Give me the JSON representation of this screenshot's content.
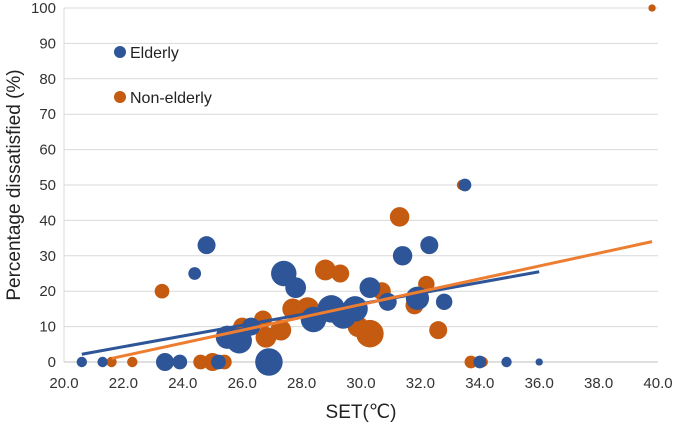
{
  "chart_data": {
    "type": "scatter",
    "title": "",
    "xlabel": "SET(℃)",
    "ylabel": "Percentage dissatisfied (%)",
    "xlim": [
      20,
      40
    ],
    "ylim": [
      0,
      100
    ],
    "x_ticks": [
      "20.0",
      "22.0",
      "24.0",
      "26.0",
      "28.0",
      "30.0",
      "32.0",
      "34.0",
      "36.0",
      "38.0",
      "40.0"
    ],
    "y_ticks": [
      "0",
      "10",
      "20",
      "30",
      "40",
      "50",
      "60",
      "70",
      "80",
      "90",
      "100"
    ],
    "grid": true,
    "legend_position": "top-left",
    "marker_size_encoding": "bubble area",
    "series": [
      {
        "name": "Elderly",
        "color": "#2e5597",
        "points": [
          {
            "x": 20.6,
            "y": 0,
            "s": 1
          },
          {
            "x": 21.3,
            "y": 0,
            "s": 1
          },
          {
            "x": 23.4,
            "y": 0,
            "s": 3
          },
          {
            "x": 23.9,
            "y": 0,
            "s": 2
          },
          {
            "x": 24.4,
            "y": 25,
            "s": 1.5
          },
          {
            "x": 24.8,
            "y": 33,
            "s": 3
          },
          {
            "x": 25.2,
            "y": 0,
            "s": 2
          },
          {
            "x": 25.5,
            "y": 7,
            "s": 5
          },
          {
            "x": 25.9,
            "y": 6,
            "s": 6
          },
          {
            "x": 26.3,
            "y": 10,
            "s": 3
          },
          {
            "x": 26.9,
            "y": 0,
            "s": 7
          },
          {
            "x": 27.4,
            "y": 25,
            "s": 6
          },
          {
            "x": 27.8,
            "y": 21,
            "s": 4
          },
          {
            "x": 28.4,
            "y": 12,
            "s": 6
          },
          {
            "x": 29.0,
            "y": 15,
            "s": 7
          },
          {
            "x": 29.4,
            "y": 13,
            "s": 6
          },
          {
            "x": 29.8,
            "y": 15,
            "s": 6
          },
          {
            "x": 30.3,
            "y": 21,
            "s": 4
          },
          {
            "x": 30.9,
            "y": 17,
            "s": 3
          },
          {
            "x": 31.4,
            "y": 30,
            "s": 3.5
          },
          {
            "x": 31.9,
            "y": 18,
            "s": 5
          },
          {
            "x": 32.3,
            "y": 33,
            "s": 3
          },
          {
            "x": 32.8,
            "y": 17,
            "s": 2.5
          },
          {
            "x": 33.5,
            "y": 50,
            "s": 1.5
          },
          {
            "x": 34.0,
            "y": 0,
            "s": 1.5
          },
          {
            "x": 34.9,
            "y": 0,
            "s": 1
          },
          {
            "x": 36.0,
            "y": 0,
            "s": 0.5
          }
        ]
      },
      {
        "name": "Non-elderly",
        "color": "#c55a11",
        "points": [
          {
            "x": 21.6,
            "y": 0,
            "s": 1
          },
          {
            "x": 22.3,
            "y": 0,
            "s": 1
          },
          {
            "x": 23.3,
            "y": 20,
            "s": 2
          },
          {
            "x": 24.6,
            "y": 0,
            "s": 2
          },
          {
            "x": 25.0,
            "y": 0,
            "s": 3
          },
          {
            "x": 25.4,
            "y": 0,
            "s": 2
          },
          {
            "x": 26.0,
            "y": 10,
            "s": 3
          },
          {
            "x": 26.7,
            "y": 12,
            "s": 3
          },
          {
            "x": 26.8,
            "y": 7,
            "s": 4
          },
          {
            "x": 27.3,
            "y": 9,
            "s": 4
          },
          {
            "x": 27.7,
            "y": 15,
            "s": 4
          },
          {
            "x": 28.2,
            "y": 15,
            "s": 5
          },
          {
            "x": 28.8,
            "y": 26,
            "s": 4
          },
          {
            "x": 29.3,
            "y": 25,
            "s": 3
          },
          {
            "x": 29.9,
            "y": 10,
            "s": 4
          },
          {
            "x": 30.3,
            "y": 8,
            "s": 7
          },
          {
            "x": 30.7,
            "y": 20,
            "s": 3
          },
          {
            "x": 31.3,
            "y": 41,
            "s": 3.5
          },
          {
            "x": 31.8,
            "y": 16,
            "s": 3
          },
          {
            "x": 32.2,
            "y": 22,
            "s": 2.5
          },
          {
            "x": 32.6,
            "y": 9,
            "s": 3
          },
          {
            "x": 33.4,
            "y": 50,
            "s": 1
          },
          {
            "x": 33.7,
            "y": 0,
            "s": 1.5
          },
          {
            "x": 34.1,
            "y": 0,
            "s": 1
          },
          {
            "x": 39.8,
            "y": 100,
            "s": 0.5
          }
        ]
      }
    ],
    "trendlines": [
      {
        "series": "Elderly",
        "color": "#2e5597",
        "x": [
          20.6,
          36.0
        ],
        "y": [
          2.2,
          25.5
        ]
      },
      {
        "series": "Non-elderly",
        "color": "#ed7d31",
        "x": [
          21.6,
          39.8
        ],
        "y": [
          1.0,
          34.0
        ]
      }
    ]
  }
}
